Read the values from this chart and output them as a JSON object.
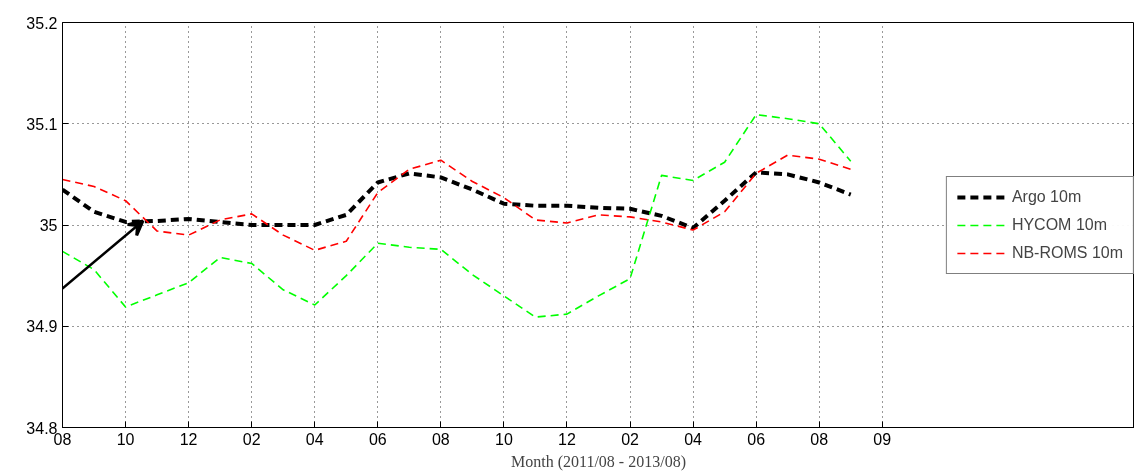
{
  "chart_data": {
    "type": "line",
    "xlabel": "Month (2011/08 - 2013/08)",
    "categories": [
      "08",
      null,
      "10",
      null,
      "12",
      null,
      "02",
      null,
      "04",
      null,
      "06",
      null,
      "08",
      null,
      "10",
      null,
      "12",
      null,
      "02",
      null,
      "04",
      null,
      "06",
      null,
      "08",
      null,
      "09",
      null,
      null,
      null,
      null,
      null,
      null,
      null,
      null
    ],
    "series": [
      {
        "name": "Argo 10m",
        "color": "#000000",
        "values": [
          35.035,
          35.013,
          35.003,
          35.004,
          35.006,
          35.003,
          35.0,
          35.0,
          35.0,
          35.01,
          35.042,
          35.051,
          35.047,
          35.035,
          35.021,
          35.019,
          35.019,
          35.017,
          35.016,
          35.009,
          34.997,
          35.024,
          35.052,
          35.05,
          35.042,
          35.03,
          null,
          null,
          null,
          null,
          null,
          null,
          null,
          null,
          null
        ]
      },
      {
        "name": "HYCOM 10m",
        "color": "#00ff00",
        "values": [
          34.974,
          34.956,
          34.919,
          34.931,
          34.943,
          34.968,
          34.962,
          34.936,
          34.921,
          34.95,
          34.982,
          34.978,
          34.976,
          34.951,
          34.93,
          34.909,
          34.912,
          34.93,
          34.947,
          35.049,
          35.044,
          35.062,
          35.109,
          35.105,
          35.1,
          35.063,
          null,
          null,
          null,
          null,
          null,
          null,
          null,
          null,
          null
        ]
      },
      {
        "name": "NB-ROMS 10m",
        "color": "#ff0000",
        "values": [
          35.045,
          35.038,
          35.024,
          34.994,
          34.99,
          35.005,
          35.011,
          34.99,
          34.975,
          34.984,
          35.032,
          35.055,
          35.064,
          35.043,
          35.027,
          35.005,
          35.002,
          35.01,
          35.008,
          35.003,
          34.995,
          35.013,
          35.051,
          35.069,
          35.065,
          35.055,
          null,
          null,
          null,
          null,
          null,
          null,
          null,
          null,
          null
        ]
      }
    ],
    "ylim": [
      34.8,
      35.2
    ],
    "yticks": [
      34.8,
      34.9,
      35,
      35.1,
      35.2
    ],
    "grid": true,
    "legend": "right",
    "line_style": "dashed",
    "marker": "none"
  }
}
